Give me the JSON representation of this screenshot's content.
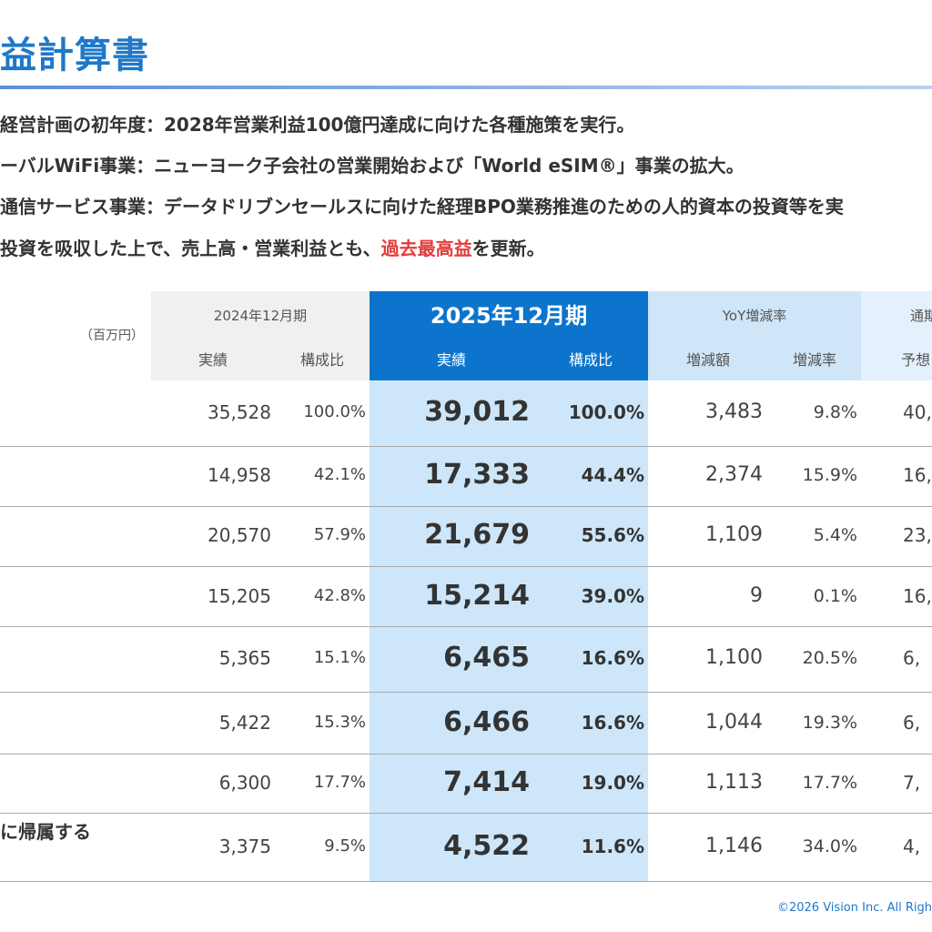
{
  "page": {
    "title": "益計算書",
    "bullets": [
      {
        "text": "経営計画の初年度：2028年営業利益100億円達成に向けた各種施策を実行。"
      },
      {
        "text": "ーバルWiFi事業：ニューヨーク子会社の営業開始および「World eSIM®」事業の拡大。"
      },
      {
        "text": "通信サービス事業：データドリブンセールスに向けた経理BPO業務推進のための人的資本の投資等を実"
      },
      {
        "pre": "投資を吸収した上で、売上高・営業利益とも、",
        "highlight": "過去最高益",
        "post": "を更新。"
      }
    ],
    "footer": "©2026 Vision Inc. All Righ"
  },
  "table": {
    "unit": "（百万円）",
    "groups": {
      "prev": "2024年12月期",
      "current": "2025年12月期",
      "yoy": "YoY増減率",
      "forecast": "通期"
    },
    "subheaders": {
      "prev_actual": "実績",
      "prev_ratio": "構成比",
      "cur_actual": "実績",
      "cur_ratio": "構成比",
      "yoy_amount": "増減額",
      "yoy_rate": "増減率",
      "forecast": "予想"
    },
    "rows": [
      {
        "label": "",
        "prev": "35,528",
        "prev_ratio": "100.0%",
        "cur": "39,012",
        "cur_ratio": "100.0%",
        "yoy": "3,483",
        "yoy_rate": "9.8%",
        "fc": "40,"
      },
      {
        "label": "",
        "prev": "14,958",
        "prev_ratio": "42.1%",
        "cur": "17,333",
        "cur_ratio": "44.4%",
        "yoy": "2,374",
        "yoy_rate": "15.9%",
        "fc": "16,"
      },
      {
        "label": "",
        "prev": "20,570",
        "prev_ratio": "57.9%",
        "cur": "21,679",
        "cur_ratio": "55.6%",
        "yoy": "1,109",
        "yoy_rate": "5.4%",
        "fc": "23,"
      },
      {
        "label": "",
        "prev": "15,205",
        "prev_ratio": "42.8%",
        "cur": "15,214",
        "cur_ratio": "39.0%",
        "yoy": "9",
        "yoy_rate": "0.1%",
        "fc": "16,"
      },
      {
        "label": "",
        "prev": "5,365",
        "prev_ratio": "15.1%",
        "cur": "6,465",
        "cur_ratio": "16.6%",
        "yoy": "1,100",
        "yoy_rate": "20.5%",
        "fc": "6,"
      },
      {
        "label": "",
        "prev": "5,422",
        "prev_ratio": "15.3%",
        "cur": "6,466",
        "cur_ratio": "16.6%",
        "yoy": "1,044",
        "yoy_rate": "19.3%",
        "fc": "6,"
      },
      {
        "label": "",
        "prev": "6,300",
        "prev_ratio": "17.7%",
        "cur": "7,414",
        "cur_ratio": "19.0%",
        "yoy": "1,113",
        "yoy_rate": "17.7%",
        "fc": "7,"
      },
      {
        "label": "に帰属する",
        "prev": "3,375",
        "prev_ratio": "9.5%",
        "cur": "4,522",
        "cur_ratio": "11.6%",
        "yoy": "1,146",
        "yoy_rate": "34.0%",
        "fc": "4,"
      }
    ]
  }
}
